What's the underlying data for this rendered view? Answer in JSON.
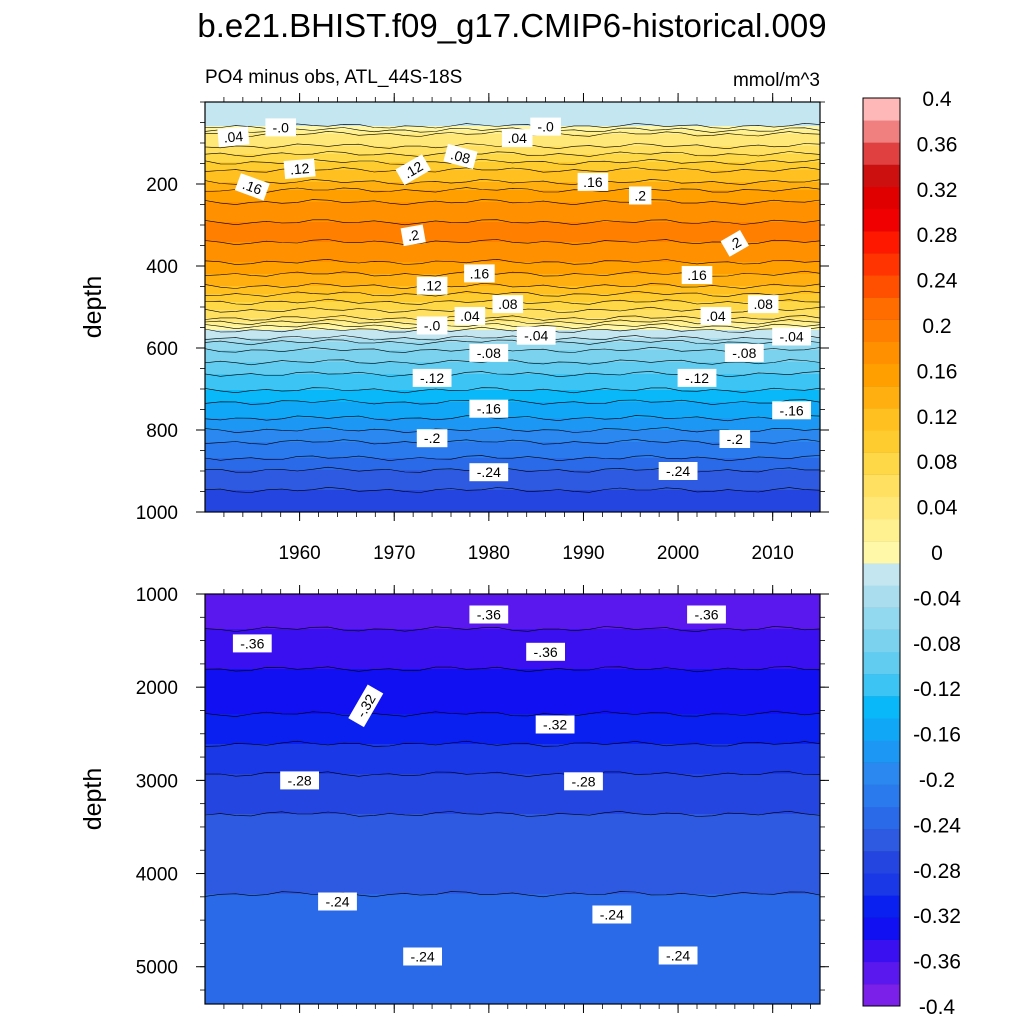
{
  "chart_data": {
    "type": "heatmap",
    "title": "b.e21.BHIST.f09_g17.CMIP6-historical.009",
    "subtitle_left": "PO4 minus obs, ATL_44S-18S",
    "units": "mmol/m^3",
    "x": {
      "label": "",
      "range": [
        1950,
        2015
      ],
      "ticks": [
        1960,
        1970,
        1980,
        1990,
        2000,
        2010
      ],
      "tick_labels": [
        "1960",
        "1970",
        "1980",
        "1990",
        "2000",
        "2010"
      ]
    },
    "panels": [
      {
        "name": "upper",
        "ylabel": "depth",
        "ylim": [
          0,
          1000
        ],
        "yticks": [
          200,
          400,
          600,
          800,
          1000
        ],
        "ytick_labels": [
          "200",
          "400",
          "600",
          "800",
          "1000"
        ],
        "depth_profile": [
          {
            "depth": 10,
            "value": -0.02
          },
          {
            "depth": 50,
            "value": -0.01
          },
          {
            "depth": 80,
            "value": 0.04
          },
          {
            "depth": 130,
            "value": 0.08
          },
          {
            "depth": 170,
            "value": 0.12
          },
          {
            "depth": 215,
            "value": 0.16
          },
          {
            "depth": 265,
            "value": 0.19
          },
          {
            "depth": 320,
            "value": 0.21
          },
          {
            "depth": 370,
            "value": 0.19
          },
          {
            "depth": 420,
            "value": 0.16
          },
          {
            "depth": 470,
            "value": 0.12
          },
          {
            "depth": 510,
            "value": 0.08
          },
          {
            "depth": 540,
            "value": 0.04
          },
          {
            "depth": 560,
            "value": 0.0
          },
          {
            "depth": 600,
            "value": -0.06
          },
          {
            "depth": 650,
            "value": -0.09
          },
          {
            "depth": 700,
            "value": -0.12
          },
          {
            "depth": 750,
            "value": -0.15
          },
          {
            "depth": 800,
            "value": -0.18
          },
          {
            "depth": 850,
            "value": -0.21
          },
          {
            "depth": 900,
            "value": -0.24
          },
          {
            "depth": 950,
            "value": -0.26
          },
          {
            "depth": 1000,
            "value": -0.28
          }
        ],
        "contour_labels": [
          {
            "text": ".04",
            "year": 1953,
            "depth": 85,
            "angle": -5
          },
          {
            "text": "-.0",
            "year": 1958,
            "depth": 62,
            "angle": 0
          },
          {
            "text": ".12",
            "year": 1960,
            "depth": 163,
            "angle": -5
          },
          {
            "text": ".16",
            "year": 1955,
            "depth": 207,
            "angle": 20
          },
          {
            "text": ".12",
            "year": 1972,
            "depth": 165,
            "angle": -30
          },
          {
            "text": ".08",
            "year": 1977,
            "depth": 133,
            "angle": 15
          },
          {
            "text": ".04",
            "year": 1983,
            "depth": 88,
            "angle": 0
          },
          {
            "text": "-.0",
            "year": 1986,
            "depth": 60,
            "angle": 0
          },
          {
            "text": ".16",
            "year": 1991,
            "depth": 195,
            "angle": 0
          },
          {
            "text": ".2",
            "year": 1996,
            "depth": 228,
            "angle": 0
          },
          {
            "text": ".2",
            "year": 1972,
            "depth": 325,
            "angle": -10
          },
          {
            "text": ".2",
            "year": 2006,
            "depth": 345,
            "angle": -30
          },
          {
            "text": ".16",
            "year": 1979,
            "depth": 418,
            "angle": 0
          },
          {
            "text": ".16",
            "year": 2002,
            "depth": 422,
            "angle": 0
          },
          {
            "text": ".12",
            "year": 1974,
            "depth": 448,
            "angle": 0
          },
          {
            "text": ".08",
            "year": 1982,
            "depth": 493,
            "angle": 0
          },
          {
            "text": ".08",
            "year": 2009,
            "depth": 493,
            "angle": 0
          },
          {
            "text": ".04",
            "year": 1978,
            "depth": 522,
            "angle": 0
          },
          {
            "text": ".04",
            "year": 2004,
            "depth": 522,
            "angle": 0
          },
          {
            "text": "-.0",
            "year": 1974,
            "depth": 545,
            "angle": 0
          },
          {
            "text": "-.04",
            "year": 1985,
            "depth": 570,
            "angle": 0
          },
          {
            "text": "-.04",
            "year": 2012,
            "depth": 572,
            "angle": 0
          },
          {
            "text": "-.08",
            "year": 1980,
            "depth": 612,
            "angle": 0
          },
          {
            "text": "-.08",
            "year": 2007,
            "depth": 612,
            "angle": 0
          },
          {
            "text": "-.12",
            "year": 1974,
            "depth": 673,
            "angle": 0
          },
          {
            "text": "-.12",
            "year": 2002,
            "depth": 673,
            "angle": 0
          },
          {
            "text": "-.16",
            "year": 1980,
            "depth": 748,
            "angle": 0
          },
          {
            "text": "-.16",
            "year": 2012,
            "depth": 752,
            "angle": 0
          },
          {
            "text": "-.2",
            "year": 1974,
            "depth": 820,
            "angle": 0
          },
          {
            "text": "-.2",
            "year": 2006,
            "depth": 822,
            "angle": 0
          },
          {
            "text": "-.24",
            "year": 1980,
            "depth": 903,
            "angle": 0
          },
          {
            "text": "-.24",
            "year": 2000,
            "depth": 900,
            "angle": 0
          }
        ]
      },
      {
        "name": "lower",
        "ylabel": "depth",
        "ylim": [
          1000,
          5400
        ],
        "yticks": [
          1000,
          2000,
          3000,
          4000,
          5000
        ],
        "ytick_labels": [
          "1000",
          "2000",
          "3000",
          "4000",
          "5000"
        ],
        "depth_profile": [
          {
            "depth": 1000,
            "value": -0.37
          },
          {
            "depth": 1300,
            "value": -0.37
          },
          {
            "depth": 1500,
            "value": -0.35
          },
          {
            "depth": 2100,
            "value": -0.33
          },
          {
            "depth": 2600,
            "value": -0.3
          },
          {
            "depth": 3100,
            "value": -0.27
          },
          {
            "depth": 3600,
            "value": -0.25
          },
          {
            "depth": 4200,
            "value": -0.24
          },
          {
            "depth": 5400,
            "value": -0.23
          }
        ],
        "contour_labels": [
          {
            "text": "-.36",
            "year": 1980,
            "depth": 1220,
            "angle": 0
          },
          {
            "text": "-.36",
            "year": 2003,
            "depth": 1220,
            "angle": 0
          },
          {
            "text": "-.36",
            "year": 1955,
            "depth": 1530,
            "angle": 0
          },
          {
            "text": "-.36",
            "year": 1986,
            "depth": 1620,
            "angle": 0
          },
          {
            "text": "-.32",
            "year": 1967,
            "depth": 2200,
            "angle": -60
          },
          {
            "text": "-.32",
            "year": 1987,
            "depth": 2400,
            "angle": 0
          },
          {
            "text": "-.28",
            "year": 1960,
            "depth": 3000,
            "angle": 0
          },
          {
            "text": "-.28",
            "year": 1990,
            "depth": 3010,
            "angle": 0
          },
          {
            "text": "-.24",
            "year": 1964,
            "depth": 4300,
            "angle": 0
          },
          {
            "text": "-.24",
            "year": 1993,
            "depth": 4440,
            "angle": 0
          },
          {
            "text": "-.24",
            "year": 1973,
            "depth": 4890,
            "angle": 0
          },
          {
            "text": "-.24",
            "year": 2000,
            "depth": 4880,
            "angle": 0
          }
        ]
      }
    ],
    "colorbar": {
      "levels": [
        -0.4,
        -0.38,
        -0.36,
        -0.34,
        -0.32,
        -0.3,
        -0.28,
        -0.26,
        -0.24,
        -0.22,
        -0.2,
        -0.18,
        -0.16,
        -0.14,
        -0.12,
        -0.1,
        -0.08,
        -0.06,
        -0.04,
        -0.02,
        0,
        0.02,
        0.04,
        0.06,
        0.08,
        0.1,
        0.12,
        0.14,
        0.16,
        0.18,
        0.2,
        0.22,
        0.24,
        0.26,
        0.28,
        0.3,
        0.32,
        0.34,
        0.36,
        0.38,
        0.4
      ],
      "tick_labels": [
        "-0.4",
        "-0.36",
        "-0.32",
        "-0.28",
        "-0.24",
        "-0.2",
        "-0.16",
        "-0.12",
        "-0.08",
        "-0.04",
        "0",
        "0.04",
        "0.08",
        "0.12",
        "0.16",
        "0.2",
        "0.24",
        "0.28",
        "0.32",
        "0.36",
        "0.4"
      ],
      "tick_values": [
        -0.4,
        -0.36,
        -0.32,
        -0.28,
        -0.24,
        -0.2,
        -0.16,
        -0.12,
        -0.08,
        -0.04,
        0,
        0.04,
        0.08,
        0.12,
        0.16,
        0.2,
        0.24,
        0.28,
        0.32,
        0.36,
        0.4
      ],
      "colors": [
        "#7a20e8",
        "#5a18ee",
        "#3a10f0",
        "#1010f2",
        "#0a20f0",
        "#1a38e6",
        "#2545e0",
        "#2e5ae2",
        "#2a6ae8",
        "#2a7aee",
        "#2a88f0",
        "#1c98f4",
        "#10a8f6",
        "#08b8f8",
        "#3cc4f4",
        "#62ccf0",
        "#7ad2ee",
        "#92d8ee",
        "#aadeee",
        "#c4e6f0",
        "#fff8a8",
        "#fff090",
        "#ffe878",
        "#ffe060",
        "#ffd848",
        "#ffcc30",
        "#ffc020",
        "#ffb010",
        "#ffa000",
        "#ff9000",
        "#ff8000",
        "#ff6c00",
        "#ff5000",
        "#ff3400",
        "#ff1800",
        "#f00000",
        "#e00000",
        "#cc1010",
        "#e04040",
        "#f08080",
        "#ffb8b8"
      ]
    }
  }
}
